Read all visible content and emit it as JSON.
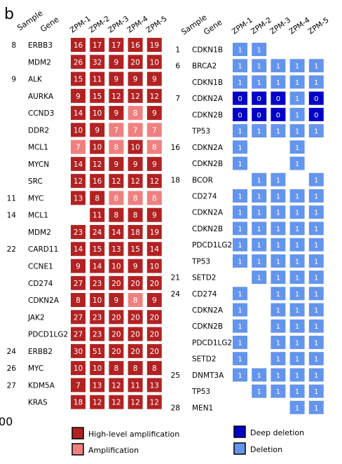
{
  "panel_label": "b",
  "stray_text": "00",
  "colors": {
    "high_amp": "#b22222",
    "amp": "#f08080",
    "deep_del": "#0000c8",
    "del": "#6495ed"
  },
  "legend": [
    {
      "key": "high_amp",
      "label": "High-level amplification"
    },
    {
      "key": "amp",
      "label": "Amplification"
    },
    {
      "key": "deep_del",
      "label": "Deep deletion"
    },
    {
      "key": "del",
      "label": "Deletion"
    }
  ],
  "chart_data": [
    {
      "type": "heatmap",
      "title": "",
      "header_sample": "Sample",
      "header_gene": "Gene",
      "columns": [
        "ZPM-1",
        "ZPM-2",
        "ZPM-3",
        "ZPM-4",
        "ZPM-5"
      ],
      "rows": [
        {
          "sample": "8",
          "gene": "ERBB3",
          "values": [
            16,
            17,
            17,
            16,
            19
          ],
          "status": [
            "H",
            "H",
            "H",
            "H",
            "H"
          ]
        },
        {
          "sample": "",
          "gene": "MDM2",
          "values": [
            26,
            32,
            9,
            20,
            10
          ],
          "status": [
            "H",
            "H",
            "H",
            "H",
            "H"
          ]
        },
        {
          "sample": "9",
          "gene": "ALK",
          "values": [
            15,
            11,
            9,
            9,
            9
          ],
          "status": [
            "H",
            "H",
            "H",
            "H",
            "H"
          ]
        },
        {
          "sample": "",
          "gene": "AURKA",
          "values": [
            9,
            15,
            12,
            12,
            12
          ],
          "status": [
            "H",
            "H",
            "H",
            "H",
            "H"
          ]
        },
        {
          "sample": "",
          "gene": "CCND3",
          "values": [
            14,
            10,
            9,
            8,
            9
          ],
          "status": [
            "H",
            "H",
            "H",
            "A",
            "H"
          ]
        },
        {
          "sample": "",
          "gene": "DDR2",
          "values": [
            10,
            9,
            7,
            7,
            7
          ],
          "status": [
            "H",
            "H",
            "A",
            "A",
            "A"
          ]
        },
        {
          "sample": "",
          "gene": "MCL1",
          "values": [
            7,
            10,
            8,
            10,
            8
          ],
          "status": [
            "A",
            "H",
            "A",
            "H",
            "A"
          ]
        },
        {
          "sample": "",
          "gene": "MYCN",
          "values": [
            14,
            12,
            9,
            9,
            9
          ],
          "status": [
            "H",
            "H",
            "H",
            "H",
            "H"
          ]
        },
        {
          "sample": "",
          "gene": "SRC",
          "values": [
            12,
            16,
            12,
            12,
            12
          ],
          "status": [
            "H",
            "H",
            "H",
            "H",
            "H"
          ]
        },
        {
          "sample": "11",
          "gene": "MYC",
          "values": [
            13,
            8,
            8,
            8,
            8
          ],
          "status": [
            "H",
            "H",
            "A",
            "A",
            "A"
          ]
        },
        {
          "sample": "14",
          "gene": "MCL1",
          "values": [
            null,
            11,
            8,
            8,
            9
          ],
          "status": [
            "",
            "H",
            "H",
            "H",
            "H"
          ]
        },
        {
          "sample": "",
          "gene": "MDM2",
          "values": [
            23,
            24,
            14,
            18,
            19
          ],
          "status": [
            "H",
            "H",
            "H",
            "H",
            "H"
          ]
        },
        {
          "sample": "22",
          "gene": "CARD11",
          "values": [
            14,
            15,
            13,
            15,
            14
          ],
          "status": [
            "H",
            "H",
            "H",
            "H",
            "H"
          ]
        },
        {
          "sample": "",
          "gene": "CCNE1",
          "values": [
            9,
            14,
            10,
            9,
            10
          ],
          "status": [
            "H",
            "H",
            "H",
            "H",
            "H"
          ]
        },
        {
          "sample": "",
          "gene": "CD274",
          "values": [
            27,
            23,
            20,
            20,
            20
          ],
          "status": [
            "H",
            "H",
            "H",
            "H",
            "H"
          ]
        },
        {
          "sample": "",
          "gene": "CDKN2A",
          "values": [
            8,
            10,
            9,
            8,
            9
          ],
          "status": [
            "H",
            "H",
            "H",
            "A",
            "H"
          ]
        },
        {
          "sample": "",
          "gene": "JAK2",
          "values": [
            27,
            23,
            20,
            20,
            20
          ],
          "status": [
            "H",
            "H",
            "H",
            "H",
            "H"
          ]
        },
        {
          "sample": "",
          "gene": "PDCD1LG2",
          "values": [
            27,
            23,
            20,
            20,
            20
          ],
          "status": [
            "H",
            "H",
            "H",
            "H",
            "H"
          ]
        },
        {
          "sample": "24",
          "gene": "ERBB2",
          "values": [
            30,
            51,
            20,
            20,
            20
          ],
          "status": [
            "H",
            "H",
            "H",
            "H",
            "H"
          ]
        },
        {
          "sample": "26",
          "gene": "MYC",
          "values": [
            10,
            10,
            8,
            8,
            8
          ],
          "status": [
            "H",
            "H",
            "H",
            "H",
            "H"
          ]
        },
        {
          "sample": "27",
          "gene": "KDM5A",
          "values": [
            7,
            13,
            12,
            11,
            13
          ],
          "status": [
            "H",
            "H",
            "H",
            "H",
            "H"
          ]
        },
        {
          "sample": "",
          "gene": "KRAS",
          "values": [
            18,
            12,
            12,
            12,
            12
          ],
          "status": [
            "H",
            "H",
            "H",
            "H",
            "H"
          ]
        }
      ]
    },
    {
      "type": "heatmap",
      "title": "",
      "header_sample": "Sample",
      "header_gene": "Gene",
      "columns": [
        "ZPM-1",
        "ZPM-2",
        "ZPM-3",
        "ZPM-4",
        "ZPM-5"
      ],
      "rows": [
        {
          "sample": "1",
          "gene": "CDKN1B",
          "values": [
            1,
            1,
            null,
            null,
            null
          ],
          "status": [
            "L",
            "L",
            "",
            "",
            ""
          ]
        },
        {
          "sample": "6",
          "gene": "BRCA2",
          "values": [
            1,
            1,
            1,
            1,
            1
          ],
          "status": [
            "L",
            "L",
            "L",
            "L",
            "L"
          ]
        },
        {
          "sample": "",
          "gene": "CDKN1B",
          "values": [
            1,
            1,
            1,
            1,
            1
          ],
          "status": [
            "L",
            "L",
            "L",
            "L",
            "L"
          ]
        },
        {
          "sample": "7",
          "gene": "CDKN2A",
          "values": [
            0,
            0,
            0,
            1,
            0
          ],
          "status": [
            "D",
            "D",
            "D",
            "L",
            "D"
          ]
        },
        {
          "sample": "",
          "gene": "CDKN2B",
          "values": [
            0,
            0,
            0,
            1,
            0
          ],
          "status": [
            "D",
            "D",
            "D",
            "L",
            "D"
          ]
        },
        {
          "sample": "",
          "gene": "TP53",
          "values": [
            1,
            1,
            1,
            1,
            1
          ],
          "status": [
            "L",
            "L",
            "L",
            "L",
            "L"
          ]
        },
        {
          "sample": "16",
          "gene": "CDKN2A",
          "values": [
            1,
            null,
            null,
            1,
            null
          ],
          "status": [
            "L",
            "",
            "",
            "L",
            ""
          ]
        },
        {
          "sample": "",
          "gene": "CDKN2B",
          "values": [
            1,
            null,
            null,
            1,
            null
          ],
          "status": [
            "L",
            "",
            "",
            "L",
            ""
          ]
        },
        {
          "sample": "18",
          "gene": "BCOR",
          "values": [
            null,
            1,
            1,
            null,
            1
          ],
          "status": [
            "",
            "L",
            "L",
            "",
            "L"
          ]
        },
        {
          "sample": "",
          "gene": "CD274",
          "values": [
            1,
            1,
            1,
            1,
            1
          ],
          "status": [
            "L",
            "L",
            "L",
            "L",
            "L"
          ]
        },
        {
          "sample": "",
          "gene": "CDKN2A",
          "values": [
            1,
            1,
            1,
            1,
            1
          ],
          "status": [
            "L",
            "L",
            "L",
            "L",
            "L"
          ]
        },
        {
          "sample": "",
          "gene": "CDKN2B",
          "values": [
            1,
            1,
            1,
            1,
            1
          ],
          "status": [
            "L",
            "L",
            "L",
            "L",
            "L"
          ]
        },
        {
          "sample": "",
          "gene": "PDCD1LG2",
          "values": [
            1,
            1,
            1,
            1,
            1
          ],
          "status": [
            "L",
            "L",
            "L",
            "L",
            "L"
          ]
        },
        {
          "sample": "",
          "gene": "TP53",
          "values": [
            1,
            1,
            1,
            1,
            1
          ],
          "status": [
            "L",
            "L",
            "L",
            "L",
            "L"
          ]
        },
        {
          "sample": "21",
          "gene": "SETD2",
          "values": [
            null,
            1,
            1,
            1,
            1
          ],
          "status": [
            "",
            "L",
            "L",
            "L",
            "L"
          ]
        },
        {
          "sample": "24",
          "gene": "CD274",
          "values": [
            1,
            null,
            1,
            1,
            1
          ],
          "status": [
            "L",
            "",
            "L",
            "L",
            "L"
          ]
        },
        {
          "sample": "",
          "gene": "CDKN2A",
          "values": [
            1,
            null,
            1,
            1,
            1
          ],
          "status": [
            "L",
            "",
            "L",
            "L",
            "L"
          ]
        },
        {
          "sample": "",
          "gene": "CDKN2B",
          "values": [
            1,
            null,
            1,
            1,
            1
          ],
          "status": [
            "L",
            "",
            "L",
            "L",
            "L"
          ]
        },
        {
          "sample": "",
          "gene": "PDCD1LG2",
          "values": [
            1,
            null,
            1,
            1,
            1
          ],
          "status": [
            "L",
            "",
            "L",
            "L",
            "L"
          ]
        },
        {
          "sample": "",
          "gene": "SETD2",
          "values": [
            1,
            null,
            1,
            1,
            1
          ],
          "status": [
            "L",
            "",
            "L",
            "L",
            "L"
          ]
        },
        {
          "sample": "25",
          "gene": "DNMT3A",
          "values": [
            1,
            1,
            1,
            1,
            1
          ],
          "status": [
            "L",
            "L",
            "L",
            "L",
            "L"
          ]
        },
        {
          "sample": "",
          "gene": "TP53",
          "values": [
            null,
            1,
            1,
            1,
            1
          ],
          "status": [
            "",
            "L",
            "L",
            "L",
            "L"
          ]
        },
        {
          "sample": "28",
          "gene": "MEN1",
          "values": [
            null,
            null,
            null,
            1,
            1
          ],
          "status": [
            "",
            "",
            "",
            "L",
            "L"
          ]
        }
      ]
    }
  ]
}
